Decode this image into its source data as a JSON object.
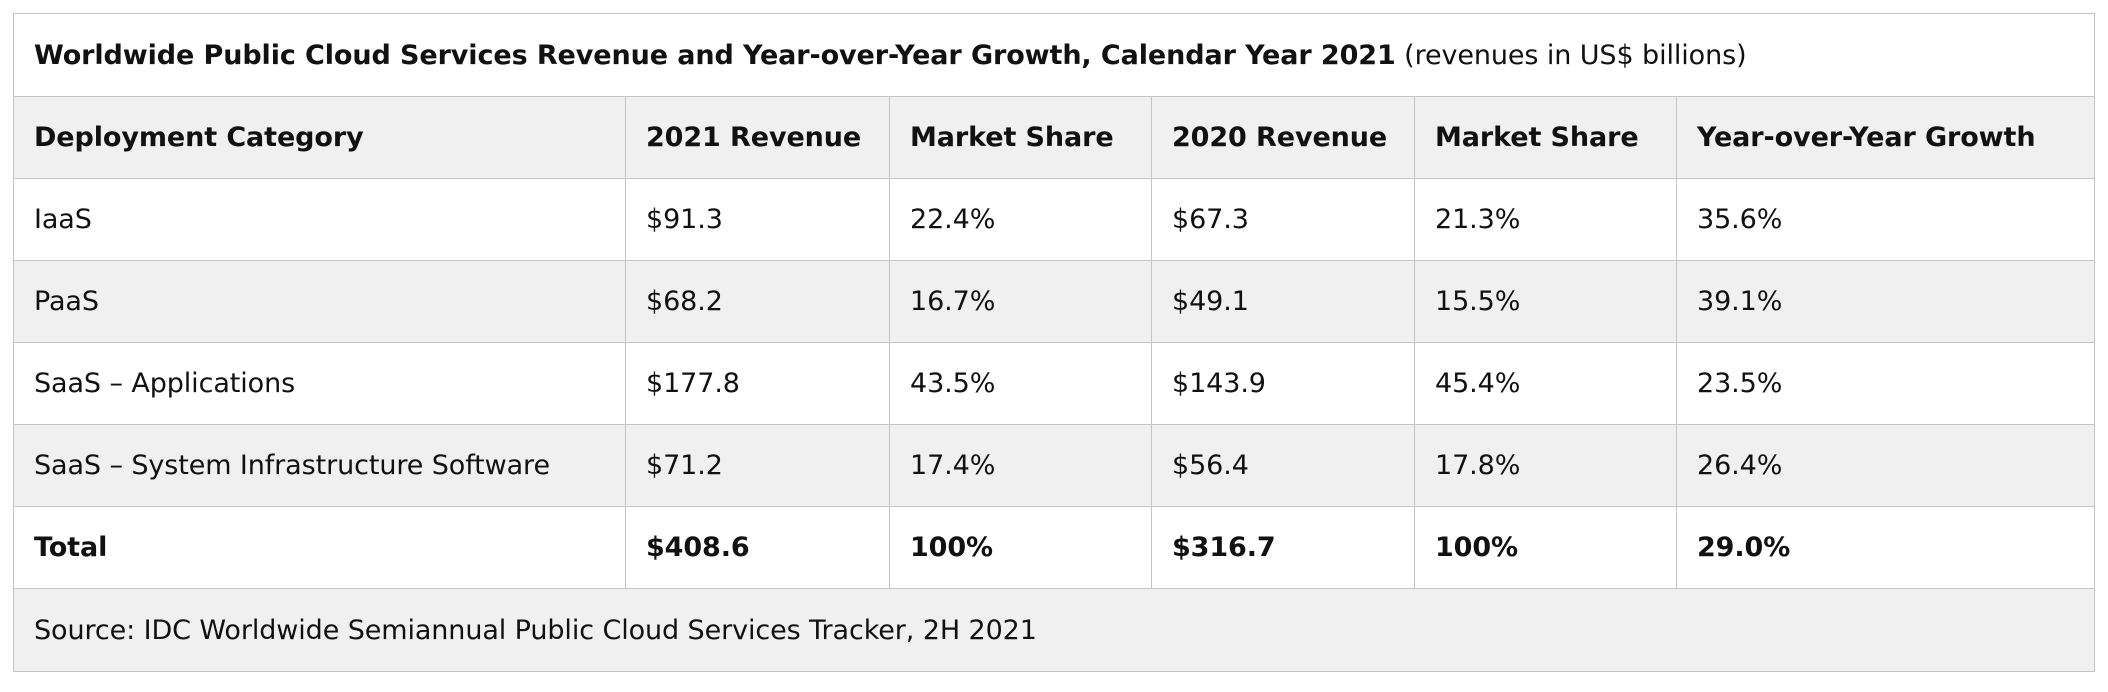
{
  "chart_data": {
    "type": "table",
    "title": "Worldwide Public Cloud Services Revenue and Year-over-Year Growth, Calendar Year 2021",
    "subtitle": "(revenues in US$ billions)",
    "columns": [
      "Deployment Category",
      "2021 Revenue",
      "Market Share",
      "2020 Revenue",
      "Market Share",
      "Year-over-Year Growth"
    ],
    "rows": [
      [
        "IaaS",
        "$91.3",
        "22.4%",
        "$67.3",
        "21.3%",
        "35.6%"
      ],
      [
        "PaaS",
        "$68.2",
        "16.7%",
        "$49.1",
        "15.5%",
        "39.1%"
      ],
      [
        "SaaS – Applications",
        "$177.8",
        "43.5%",
        "$143.9",
        "45.4%",
        "23.5%"
      ],
      [
        "SaaS – System Infrastructure Software",
        "$71.2",
        "17.4%",
        "$56.4",
        "17.8%",
        "26.4%"
      ]
    ],
    "total": [
      "Total",
      "$408.6",
      "100%",
      "$316.7",
      "100%",
      "29.0%"
    ],
    "source": "Source: IDC Worldwide Semiannual Public Cloud Services Tracker, 2H 2021"
  }
}
